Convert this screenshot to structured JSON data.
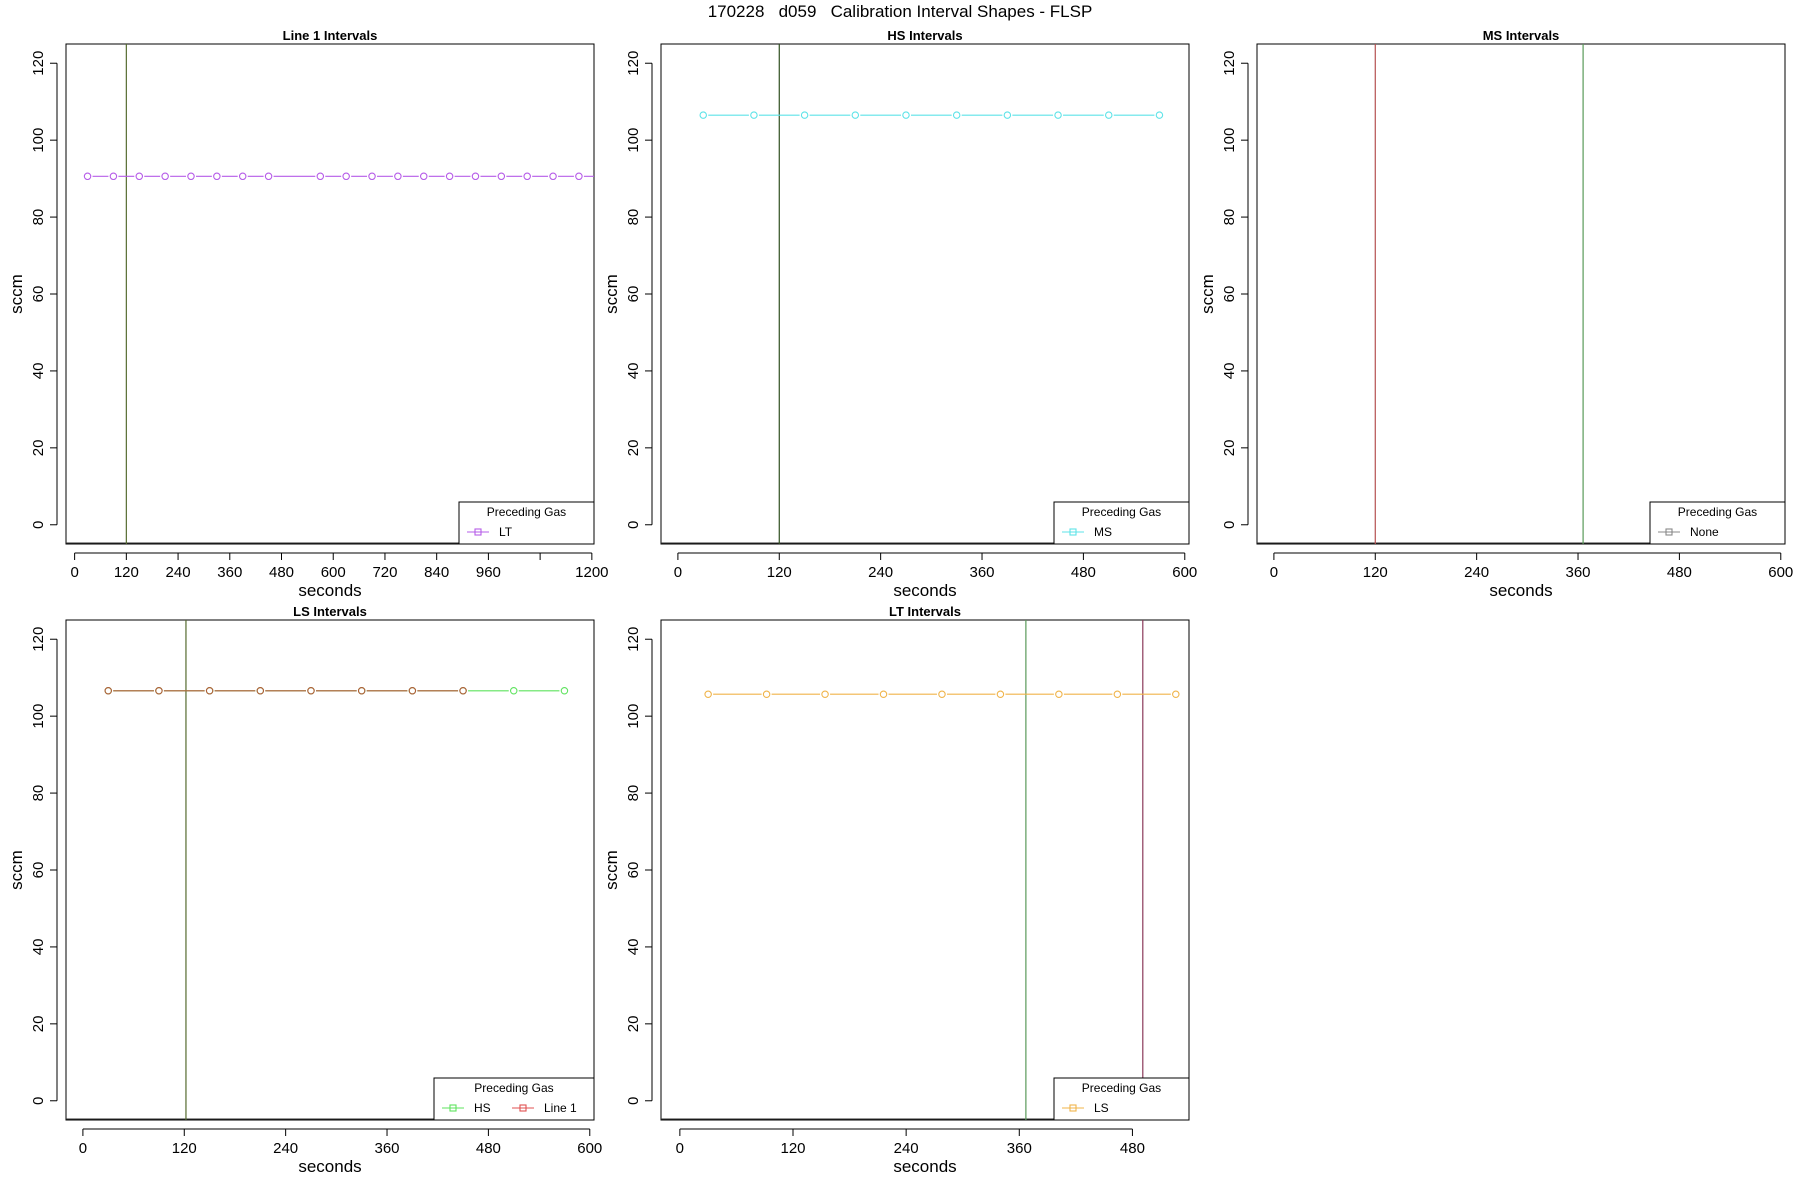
{
  "page_title": "170228   d059   Calibration Interval Shapes - FLSP",
  "chart_data": [
    {
      "type": "line",
      "title": "Line 1 Intervals",
      "xlabel": "seconds",
      "ylabel": "sccm",
      "xlim": [
        -20,
        1205
      ],
      "ylim": [
        -5,
        125
      ],
      "x_ticks": [
        0,
        120,
        240,
        360,
        480,
        600,
        720,
        840,
        960,
        1080,
        1200
      ],
      "x_tick_labels": [
        "0",
        "120",
        "240",
        "360",
        "480",
        "600",
        "720",
        "840",
        "960",
        "",
        "1200"
      ],
      "y_ticks": [
        0,
        20,
        40,
        60,
        80,
        100,
        120
      ],
      "vlines": [
        {
          "x": 120,
          "color": "#556b2f"
        }
      ],
      "series": [
        {
          "color": "#b65ce8",
          "x": [
            30,
            90,
            150,
            210,
            270,
            330,
            390,
            450,
            570,
            630,
            690,
            750,
            810,
            870,
            930,
            990,
            1050,
            1110,
            1170
          ],
          "y": [
            90.6,
            90.6,
            90.6,
            90.6,
            90.6,
            90.6,
            90.6,
            90.6,
            90.6,
            90.6,
            90.6,
            90.6,
            90.6,
            90.6,
            90.6,
            90.6,
            90.6,
            90.6,
            90.6
          ],
          "x_end": 1205
        }
      ],
      "legend": {
        "title": "Preceding Gas",
        "position": "bottom-right",
        "entries": [
          {
            "label": "LT",
            "color": "#b65ce8"
          }
        ]
      }
    },
    {
      "type": "line",
      "title": "HS Intervals",
      "xlabel": "seconds",
      "ylabel": "sccm",
      "xlim": [
        -20,
        605
      ],
      "ylim": [
        -5,
        125
      ],
      "x_ticks": [
        0,
        120,
        240,
        360,
        480,
        600
      ],
      "x_tick_labels": [
        "0",
        "120",
        "240",
        "360",
        "480",
        "600"
      ],
      "y_ticks": [
        0,
        20,
        40,
        60,
        80,
        100,
        120
      ],
      "vlines": [
        {
          "x": 120,
          "color": "#2f4f1f"
        }
      ],
      "series": [
        {
          "color": "#5ee3e8",
          "x": [
            30,
            90,
            150,
            210,
            270,
            330,
            390,
            450,
            510,
            570
          ],
          "y": [
            106.5,
            106.5,
            106.5,
            106.5,
            106.5,
            106.5,
            106.5,
            106.5,
            106.5,
            106.5
          ]
        }
      ],
      "legend": {
        "title": "Preceding Gas",
        "position": "bottom-right",
        "entries": [
          {
            "label": "MS",
            "color": "#5ee3e8"
          }
        ]
      }
    },
    {
      "type": "line",
      "title": "MS Intervals",
      "xlabel": "seconds",
      "ylabel": "sccm",
      "xlim": [
        -20,
        605
      ],
      "ylim": [
        -5,
        125
      ],
      "x_ticks": [
        0,
        120,
        240,
        360,
        480,
        600
      ],
      "x_tick_labels": [
        "0",
        "120",
        "240",
        "360",
        "480",
        "600"
      ],
      "y_ticks": [
        0,
        20,
        40,
        60,
        80,
        100,
        120
      ],
      "vlines": [
        {
          "x": 120,
          "color": "#b55050"
        },
        {
          "x": 366,
          "color": "#5a9a5a"
        }
      ],
      "series": [],
      "legend": {
        "title": "Preceding Gas",
        "position": "bottom-right",
        "entries": [
          {
            "label": "None",
            "color": "#888888"
          }
        ]
      }
    },
    {
      "type": "line",
      "title": "LS Intervals",
      "xlabel": "seconds",
      "ylabel": "sccm",
      "xlim": [
        -20,
        605
      ],
      "ylim": [
        -5,
        125
      ],
      "x_ticks": [
        0,
        120,
        240,
        360,
        480,
        600
      ],
      "x_tick_labels": [
        "0",
        "120",
        "240",
        "360",
        "480",
        "600"
      ],
      "y_ticks": [
        0,
        20,
        40,
        60,
        80,
        100,
        120
      ],
      "vlines": [
        {
          "x": 122,
          "color": "#556b2f"
        }
      ],
      "series": [
        {
          "color": "#5ee35e",
          "x": [
            30,
            90,
            150,
            210,
            270,
            330,
            390,
            450,
            510,
            570
          ],
          "y": [
            106.6,
            106.6,
            106.6,
            106.6,
            106.6,
            106.6,
            106.6,
            106.6,
            106.6,
            106.6
          ]
        },
        {
          "color": "#b55a3a",
          "x": [
            30,
            90,
            150,
            210,
            270,
            330,
            390,
            450
          ],
          "y": [
            106.6,
            106.6,
            106.6,
            106.6,
            106.6,
            106.6,
            106.6,
            106.6
          ]
        }
      ],
      "legend": {
        "title": "Preceding Gas",
        "position": "bottom-right",
        "entries": [
          {
            "label": "HS",
            "color": "#5ee35e"
          },
          {
            "label": "Line 1",
            "color": "#e05050"
          }
        ]
      }
    },
    {
      "type": "line",
      "title": "LT Intervals",
      "xlabel": "seconds",
      "ylabel": "sccm",
      "xlim": [
        -20,
        540
      ],
      "ylim": [
        -5,
        125
      ],
      "x_ticks": [
        0,
        120,
        240,
        360,
        480
      ],
      "x_tick_labels": [
        "0",
        "120",
        "240",
        "360",
        "480"
      ],
      "y_ticks": [
        0,
        20,
        40,
        60,
        80,
        100,
        120
      ],
      "vlines": [
        {
          "x": 367,
          "color": "#5a9a5a"
        },
        {
          "x": 491,
          "color": "#8b3a5a"
        }
      ],
      "series": [
        {
          "color": "#f0b44a",
          "x": [
            30,
            92,
            154,
            216,
            278,
            340,
            402,
            464,
            526
          ],
          "y": [
            105.7,
            105.7,
            105.7,
            105.7,
            105.7,
            105.7,
            105.7,
            105.7,
            105.7
          ]
        }
      ],
      "legend": {
        "title": "Preceding Gas",
        "position": "bottom-right",
        "entries": [
          {
            "label": "LS",
            "color": "#f0b44a"
          }
        ]
      }
    }
  ]
}
